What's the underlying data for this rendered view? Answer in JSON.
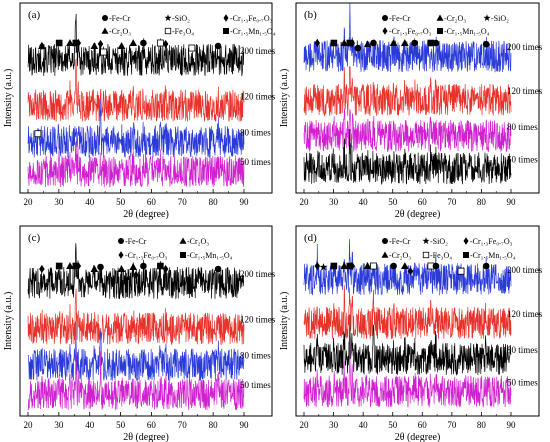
{
  "chart_data": [
    {
      "type": "line",
      "panel_label": "(a)",
      "xlabel": "2θ (degree)",
      "ylabel": "Intensity (a.u.)",
      "xlim": [
        20,
        90
      ],
      "x_ticks": [
        "20",
        "30",
        "40",
        "50",
        "60",
        "70",
        "80",
        "90"
      ],
      "legend": [
        {
          "marker": "circle",
          "label": "-Fe-Cr"
        },
        {
          "marker": "star",
          "label": "-SiO₂"
        },
        {
          "marker": "diamond",
          "label": "-Cr₁.₃Fe₀.₇O₃"
        },
        {
          "marker": "triangle",
          "label": "-Cr₂O₃"
        },
        {
          "marker": "open-square",
          "label": "-Fe₃O₄"
        },
        {
          "marker": "square",
          "label": "-Cr₁.₅Mn₁.₅O₄"
        }
      ],
      "series": [
        {
          "name": "200 times",
          "color": "#000000"
        },
        {
          "name": "120 times",
          "color": "#e8312a"
        },
        {
          "name": "80 times",
          "color": "#2a3ad8"
        },
        {
          "name": "50 times",
          "color": "#d020d0"
        }
      ],
      "peaks": [
        {
          "x": 24.5,
          "h": 0.55,
          "i": [
            0.3,
            0.2,
            0.15,
            0.2
          ]
        },
        {
          "x": 30.1,
          "h": 1.0,
          "i": [
            0.5,
            0.4,
            0.35,
            0.4
          ]
        },
        {
          "x": 33.6,
          "h": 0.8,
          "i": [
            0.6,
            0.5,
            0.45,
            0.6
          ]
        },
        {
          "x": 35.5,
          "h": 2.6,
          "i": [
            2.3,
            2.0,
            1.0,
            1.3
          ]
        },
        {
          "x": 36.3,
          "h": 1.2,
          "i": [
            0.8,
            0.6,
            0.5,
            0.6
          ]
        },
        {
          "x": 41.5,
          "h": 0.4,
          "i": [
            0.3,
            0.2,
            0.2,
            0.2
          ]
        },
        {
          "x": 43.5,
          "h": 0.6,
          "i": [
            0.4,
            0.3,
            2.0,
            0.35
          ]
        },
        {
          "x": 50.3,
          "h": 0.35,
          "i": [
            0.3,
            0.25,
            0.2,
            0.25
          ]
        },
        {
          "x": 54.1,
          "h": 0.55,
          "i": [
            0.5,
            0.35,
            0.3,
            0.35
          ]
        },
        {
          "x": 57.4,
          "h": 0.6,
          "i": [
            0.5,
            0.4,
            0.3,
            0.4
          ]
        },
        {
          "x": 62.9,
          "h": 0.7,
          "i": [
            0.6,
            0.4,
            0.35,
            0.5
          ]
        },
        {
          "x": 64.6,
          "h": 0.5,
          "i": [
            0.4,
            0.3,
            0.45,
            0.3
          ]
        },
        {
          "x": 73.1,
          "h": 0.2,
          "i": [
            0.2,
            0.15,
            0.1,
            0.15
          ]
        },
        {
          "x": 81.6,
          "h": 0.3,
          "i": [
            0.3,
            0.2,
            0.8,
            0.4
          ]
        }
      ],
      "annotations": [
        {
          "marker": "diamond",
          "x": 24.5
        },
        {
          "marker": "triangle",
          "x": 24.5
        },
        {
          "marker": "square",
          "x": 30.1
        },
        {
          "marker": "triangle",
          "x": 33.6
        },
        {
          "marker": "square",
          "x": 35.5
        },
        {
          "marker": "diamond",
          "x": 36.3
        },
        {
          "marker": "triangle",
          "x": 41.5
        },
        {
          "marker": "diamond",
          "x": 43.5
        },
        {
          "marker": "open-square",
          "x": 44.5
        },
        {
          "marker": "triangle",
          "x": 50.3
        },
        {
          "marker": "triangle",
          "x": 54.1
        },
        {
          "marker": "circle",
          "x": 57.4
        },
        {
          "marker": "open-square",
          "x": 62.9
        },
        {
          "marker": "diamond",
          "x": 64.6
        },
        {
          "marker": "open-square",
          "x": 73.1
        },
        {
          "marker": "circle",
          "x": 81.6
        },
        {
          "marker": "open-square",
          "x": 23.2,
          "series": 2
        }
      ]
    },
    {
      "type": "line",
      "panel_label": "(b)",
      "xlabel": "2θ (degree)",
      "ylabel": "Intensity (a.u.)",
      "xlim": [
        20,
        90
      ],
      "x_ticks": [
        "20",
        "30",
        "40",
        "50",
        "60",
        "70",
        "80",
        "90"
      ],
      "legend": [
        {
          "marker": "circle",
          "label": "-Fe-Cr"
        },
        {
          "marker": "triangle",
          "label": "-Cr₂O₃"
        },
        {
          "marker": "star",
          "label": "-SiO₂"
        },
        {
          "marker": "diamond",
          "label": "-Cr₁.₃Fe₀.₇O₃"
        },
        {
          "marker": "square",
          "label": "-Cr₁.₅Mn₁.₅O₄"
        }
      ],
      "series": [
        {
          "name": "200 times",
          "color": "#2a3ad8"
        },
        {
          "name": "120 times",
          "color": "#e8312a"
        },
        {
          "name": "80 times",
          "color": "#d020d0"
        },
        {
          "name": "50 times",
          "color": "#000000"
        }
      ],
      "peaks": [
        {
          "x": 24.5,
          "h": 0.5,
          "i": [
            0.3,
            0.3,
            0.3,
            0.6
          ]
        },
        {
          "x": 30.1,
          "h": 1.0,
          "i": [
            0.5,
            0.5,
            0.5,
            0.5
          ]
        },
        {
          "x": 33.6,
          "h": 0.7,
          "i": [
            0.8,
            0.9,
            0.9,
            0.9
          ]
        },
        {
          "x": 35.5,
          "h": 2.7,
          "i": [
            2.0,
            2.2,
            2.0,
            1.2
          ]
        },
        {
          "x": 36.3,
          "h": 1.1,
          "i": [
            0.6,
            0.6,
            0.6,
            0.6
          ]
        },
        {
          "x": 41.5,
          "h": 0.3,
          "i": [
            0.2,
            0.2,
            0.2,
            0.2
          ]
        },
        {
          "x": 43.5,
          "h": 0.5,
          "i": [
            0.3,
            0.3,
            0.3,
            0.3
          ]
        },
        {
          "x": 50.3,
          "h": 0.4,
          "i": [
            0.3,
            0.3,
            0.3,
            0.3
          ]
        },
        {
          "x": 54.1,
          "h": 0.5,
          "i": [
            0.4,
            0.4,
            0.4,
            0.4
          ]
        },
        {
          "x": 57.4,
          "h": 0.5,
          "i": [
            0.4,
            0.4,
            0.4,
            0.4
          ]
        },
        {
          "x": 62.9,
          "h": 0.7,
          "i": [
            0.5,
            0.5,
            0.5,
            0.5
          ]
        },
        {
          "x": 64.6,
          "h": 0.4,
          "i": [
            0.3,
            0.3,
            0.3,
            0.4
          ]
        },
        {
          "x": 81.6,
          "h": 0.2,
          "i": [
            0.2,
            0.2,
            0.2,
            0.3
          ]
        }
      ],
      "annotations": [
        {
          "marker": "diamond",
          "x": 24.5
        },
        {
          "marker": "square",
          "x": 30.1
        },
        {
          "marker": "triangle",
          "x": 33.6
        },
        {
          "marker": "square",
          "x": 35.5
        },
        {
          "marker": "diamond",
          "x": 36.3
        },
        {
          "marker": "circle",
          "x": 38.2
        },
        {
          "marker": "triangle",
          "x": 41.5
        },
        {
          "marker": "circle",
          "x": 43.5
        },
        {
          "marker": "triangle",
          "x": 50.3
        },
        {
          "marker": "triangle",
          "x": 54.1
        },
        {
          "marker": "circle",
          "x": 57.4
        },
        {
          "marker": "square",
          "x": 62.9
        },
        {
          "marker": "circle",
          "x": 64.6
        },
        {
          "marker": "circle",
          "x": 81.6
        }
      ]
    },
    {
      "type": "line",
      "panel_label": "(c)",
      "xlabel": "2θ (degree)",
      "ylabel": "Intensity (a.u.)",
      "xlim": [
        20,
        90
      ],
      "x_ticks": [
        "20",
        "30",
        "40",
        "50",
        "60",
        "70",
        "80",
        "90"
      ],
      "legend": [
        {
          "marker": "circle",
          "label": "-Fe-Cr"
        },
        {
          "marker": "triangle",
          "label": "-Cr₂O₃"
        },
        {
          "marker": "diamond",
          "label": "-Cr₁.₃Fe₀.₇O₃"
        },
        {
          "marker": "square",
          "label": "-Cr₁.₅Mn₁.₅O₄"
        }
      ],
      "series": [
        {
          "name": "200 times",
          "color": "#000000"
        },
        {
          "name": "120 times",
          "color": "#e8312a"
        },
        {
          "name": "80 times",
          "color": "#2a3ad8"
        },
        {
          "name": "50 times",
          "color": "#d020d0"
        }
      ],
      "peaks": [
        {
          "x": 24.5,
          "h": 0.5,
          "i": [
            0.3,
            0.2,
            0.2,
            0.2
          ]
        },
        {
          "x": 30.1,
          "h": 0.9,
          "i": [
            0.5,
            0.4,
            0.4,
            0.4
          ]
        },
        {
          "x": 33.6,
          "h": 0.7,
          "i": [
            0.6,
            0.5,
            0.5,
            0.5
          ]
        },
        {
          "x": 35.5,
          "h": 2.6,
          "i": [
            2.0,
            1.6,
            1.4,
            1.6
          ]
        },
        {
          "x": 36.3,
          "h": 1.1,
          "i": [
            0.7,
            0.5,
            0.5,
            0.5
          ]
        },
        {
          "x": 41.5,
          "h": 0.4,
          "i": [
            0.3,
            0.2,
            0.2,
            0.2
          ]
        },
        {
          "x": 43.5,
          "h": 0.5,
          "i": [
            0.4,
            0.3,
            2.0,
            1.5
          ]
        },
        {
          "x": 50.3,
          "h": 0.3,
          "i": [
            0.3,
            0.2,
            0.2,
            0.2
          ]
        },
        {
          "x": 54.1,
          "h": 0.5,
          "i": [
            0.4,
            0.3,
            0.3,
            0.3
          ]
        },
        {
          "x": 57.4,
          "h": 0.6,
          "i": [
            0.5,
            0.4,
            0.3,
            0.3
          ]
        },
        {
          "x": 62.9,
          "h": 0.6,
          "i": [
            0.5,
            0.4,
            0.4,
            0.4
          ]
        },
        {
          "x": 64.6,
          "h": 0.4,
          "i": [
            0.3,
            0.3,
            0.6,
            0.5
          ]
        },
        {
          "x": 81.6,
          "h": 0.3,
          "i": [
            0.3,
            0.3,
            0.5,
            0.4
          ]
        }
      ],
      "annotations": [
        {
          "marker": "diamond",
          "x": 24.5
        },
        {
          "marker": "square",
          "x": 30.1
        },
        {
          "marker": "triangle",
          "x": 33.6
        },
        {
          "marker": "square",
          "x": 35.5
        },
        {
          "marker": "diamond",
          "x": 36.3
        },
        {
          "marker": "triangle",
          "x": 41.5
        },
        {
          "marker": "circle",
          "x": 43.5
        },
        {
          "marker": "triangle",
          "x": 50.3
        },
        {
          "marker": "triangle",
          "x": 54.1
        },
        {
          "marker": "diamond",
          "x": 55.0
        },
        {
          "marker": "circle",
          "x": 57.4
        },
        {
          "marker": "square",
          "x": 62.9
        },
        {
          "marker": "diamond",
          "x": 64.6
        },
        {
          "marker": "circle",
          "x": 81.6
        }
      ]
    },
    {
      "type": "line",
      "panel_label": "(d)",
      "xlabel": "2θ (degree)",
      "ylabel": "Intensity (a.u.)",
      "xlim": [
        20,
        90
      ],
      "x_ticks": [
        "20",
        "30",
        "40",
        "50",
        "60",
        "70",
        "80",
        "90"
      ],
      "legend": [
        {
          "marker": "circle",
          "label": "-Fe-Cr"
        },
        {
          "marker": "star",
          "label": "-SiO₂"
        },
        {
          "marker": "diamond",
          "label": "-Cr₁.₃Fe₀.₇O₃"
        },
        {
          "marker": "triangle",
          "label": "-Cr₂O₃"
        },
        {
          "marker": "open-square",
          "label": "-Fe₃O₄"
        },
        {
          "marker": "square",
          "label": "-Cr₁.₅Mn₁.₅O₄"
        }
      ],
      "series": [
        {
          "name": "200 times",
          "color": "#2a3ad8"
        },
        {
          "name": "120 times",
          "color": "#e8312a"
        },
        {
          "name": "80 times",
          "color": "#000000"
        },
        {
          "name": "50 times",
          "color": "#d020d0"
        }
      ],
      "peaks": [
        {
          "x": 24.5,
          "h": 0.9,
          "i": [
            1.0,
            0.8,
            0.9,
            0.5
          ]
        },
        {
          "x": 26.6,
          "h": 0.3,
          "i": [
            0.2,
            0.2,
            0.2,
            0.2
          ]
        },
        {
          "x": 30.1,
          "h": 0.8,
          "i": [
            0.5,
            0.5,
            0.5,
            0.5
          ]
        },
        {
          "x": 33.6,
          "h": 1.2,
          "i": [
            1.3,
            1.2,
            1.2,
            0.9
          ]
        },
        {
          "x": 35.5,
          "h": 2.5,
          "i": [
            1.6,
            1.6,
            1.6,
            1.8
          ]
        },
        {
          "x": 36.3,
          "h": 1.4,
          "i": [
            1.1,
            1.0,
            1.0,
            0.8
          ]
        },
        {
          "x": 41.5,
          "h": 0.4,
          "i": [
            0.3,
            0.3,
            0.3,
            0.3
          ]
        },
        {
          "x": 43.5,
          "h": 0.6,
          "i": [
            0.7,
            0.9,
            1.2,
            0.5
          ]
        },
        {
          "x": 50.3,
          "h": 0.4,
          "i": [
            0.3,
            0.3,
            0.3,
            0.3
          ]
        },
        {
          "x": 54.1,
          "h": 0.5,
          "i": [
            0.6,
            0.5,
            0.5,
            0.4
          ]
        },
        {
          "x": 57.4,
          "h": 0.6,
          "i": [
            0.4,
            0.4,
            0.4,
            0.4
          ]
        },
        {
          "x": 62.9,
          "h": 0.6,
          "i": [
            0.5,
            0.5,
            0.5,
            0.4
          ]
        },
        {
          "x": 64.6,
          "h": 0.5,
          "i": [
            0.6,
            0.6,
            0.8,
            0.4
          ]
        },
        {
          "x": 81.6,
          "h": 0.3,
          "i": [
            0.6,
            0.5,
            1.0,
            0.3
          ]
        }
      ],
      "annotations": [
        {
          "marker": "diamond",
          "x": 24.5
        },
        {
          "marker": "star",
          "x": 26.6
        },
        {
          "marker": "square",
          "x": 30.1
        },
        {
          "marker": "triangle",
          "x": 33.6
        },
        {
          "marker": "square",
          "x": 35.5
        },
        {
          "marker": "diamond",
          "x": 36.3
        },
        {
          "marker": "triangle",
          "x": 41.5
        },
        {
          "marker": "open-square",
          "x": 43.5
        },
        {
          "marker": "circle",
          "x": 50.3
        },
        {
          "marker": "triangle",
          "x": 54.1
        },
        {
          "marker": "diamond",
          "x": 56.0
        },
        {
          "marker": "open-square",
          "x": 62.9
        },
        {
          "marker": "circle",
          "x": 64.6
        },
        {
          "marker": "open-square",
          "x": 73.1
        },
        {
          "marker": "circle",
          "x": 81.6
        }
      ]
    }
  ]
}
